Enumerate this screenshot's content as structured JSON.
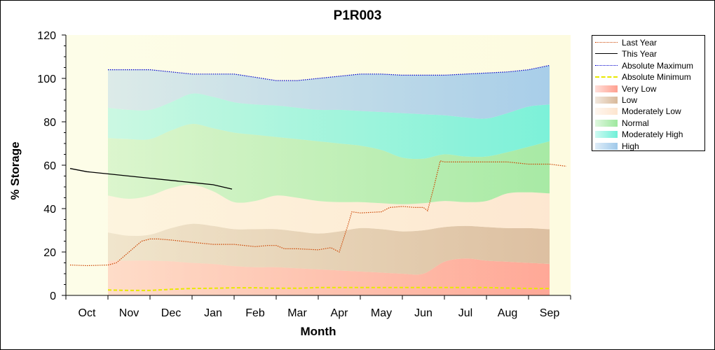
{
  "chart_data": {
    "type": "area",
    "title": "P1R003",
    "xlabel": "Month",
    "ylabel": "% Storage",
    "ylim": [
      0,
      120
    ],
    "yticks": [
      "0",
      "20",
      "40",
      "60",
      "80",
      "100",
      "120"
    ],
    "categories": [
      "Oct",
      "Nov",
      "Dec",
      "Jan",
      "Feb",
      "Mar",
      "Apr",
      "May",
      "Jun",
      "Jul",
      "Aug",
      "Sep"
    ],
    "x_band": [
      1,
      11.5
    ],
    "bands": {
      "x": [
        1,
        1.5,
        2,
        2.5,
        3,
        3.5,
        4,
        4.5,
        5,
        5.5,
        6,
        6.5,
        7,
        7.5,
        8,
        8.5,
        9,
        9.5,
        10,
        10.5,
        11,
        11.5
      ],
      "low": [
        16,
        16,
        16,
        15.7,
        15,
        14.5,
        13.5,
        13,
        13,
        12.5,
        12,
        11.5,
        11,
        10.5,
        10,
        10,
        15.5,
        17,
        16,
        15.5,
        15,
        14.5
      ],
      "mod_low": [
        29,
        27.5,
        28,
        31,
        33,
        32,
        30.5,
        30.5,
        30.5,
        29.5,
        28.5,
        29.5,
        31,
        30.5,
        29.5,
        30,
        31.5,
        32,
        31.5,
        31,
        31,
        30.5
      ],
      "normal": [
        46,
        44.5,
        46,
        49.5,
        51,
        48,
        43,
        43.5,
        46,
        45,
        43.5,
        43,
        43,
        42.5,
        42,
        42.5,
        43.5,
        43,
        43.5,
        47,
        47.5,
        47
      ],
      "mod_high": [
        72.5,
        72,
        72,
        76,
        79,
        77,
        75,
        74,
        73,
        72,
        71,
        70,
        69,
        67,
        63.5,
        63,
        65,
        64,
        64,
        66,
        68.5,
        71
      ],
      "high": [
        86.5,
        85.5,
        85.5,
        89,
        93,
        91.5,
        89,
        88,
        87.5,
        86.5,
        85.5,
        85.5,
        85,
        84.5,
        84,
        83.5,
        83,
        82,
        81.5,
        84,
        87,
        88
      ],
      "top": [
        104,
        104,
        104,
        103,
        102,
        102,
        102,
        100.5,
        99,
        99,
        100,
        101,
        102,
        102,
        101.5,
        101.5,
        101.5,
        102,
        102.5,
        103,
        104,
        106
      ]
    },
    "series": [
      {
        "name": "Last Year",
        "color": "#cc4400",
        "style": "dotted",
        "x": [
          0.1,
          0.5,
          1,
          1.2,
          1.5,
          1.8,
          2,
          2.2,
          2.5,
          3,
          3.5,
          4,
          4.5,
          4.8,
          5,
          5.2,
          5.5,
          6,
          6.3,
          6.5,
          6.7,
          6.8,
          7,
          7.5,
          7.7,
          8,
          8.3,
          8.5,
          8.6,
          8.75,
          8.9,
          9,
          9.5,
          10,
          10.5,
          11,
          11.5,
          11.9
        ],
        "y": [
          14,
          13.7,
          14,
          15,
          20,
          25,
          26,
          26,
          25.5,
          24.5,
          23.5,
          23.5,
          22.5,
          23,
          23,
          21.5,
          21.5,
          21,
          22,
          20,
          32,
          38.5,
          38,
          38.5,
          40.5,
          41,
          40.5,
          40.5,
          39,
          50,
          62,
          61.5,
          61.5,
          61.5,
          61.5,
          60.5,
          60.5,
          59.5
        ]
      },
      {
        "name": "This Year",
        "color": "#000000",
        "style": "solid",
        "x": [
          0.1,
          0.5,
          1,
          1.5,
          2,
          2.5,
          3,
          3.5,
          3.95
        ],
        "y": [
          58.5,
          57,
          56,
          55,
          54,
          53,
          52,
          51,
          49
        ]
      },
      {
        "name": "Absolute Maximum",
        "color": "#0000cc",
        "style": "dotted",
        "x": [
          1,
          1.5,
          2,
          2.5,
          3,
          3.5,
          4,
          4.5,
          5,
          5.5,
          6,
          6.5,
          7,
          7.5,
          8,
          8.5,
          9,
          9.5,
          10,
          10.5,
          11,
          11.5
        ],
        "y": [
          104,
          104,
          104,
          103,
          102,
          102,
          102,
          100.5,
          99,
          99,
          100,
          101,
          102,
          102,
          101.5,
          101.5,
          101.5,
          102,
          102.5,
          103,
          104,
          106
        ]
      },
      {
        "name": "Absolute Minimum",
        "color": "#e8e800",
        "style": "dashed",
        "x": [
          1,
          1.5,
          2,
          2.5,
          3,
          3.5,
          4,
          4.5,
          5,
          5.5,
          6,
          6.5,
          7,
          7.5,
          8,
          8.5,
          9,
          9.5,
          10,
          10.5,
          11,
          11.5
        ],
        "y": [
          2.5,
          2.3,
          2.3,
          2.8,
          3.2,
          3.3,
          3.5,
          3.5,
          3.3,
          3.3,
          3.6,
          3.6,
          3.6,
          3.6,
          3.6,
          3.6,
          3.6,
          3.6,
          3.6,
          3.4,
          3.2,
          3.2
        ]
      }
    ],
    "legend": {
      "position": "right",
      "items": [
        {
          "label": "Last Year",
          "kind": "line",
          "color": "#cc4400",
          "style": "dotted"
        },
        {
          "label": "This Year",
          "kind": "line",
          "color": "#000000",
          "style": "solid"
        },
        {
          "label": "Absolute Maximum",
          "kind": "line",
          "color": "#0000cc",
          "style": "dotted"
        },
        {
          "label": "Absolute Minimum",
          "kind": "line",
          "color": "#e8e800",
          "style": "dashed"
        },
        {
          "label": "Very Low",
          "kind": "area",
          "color": "#ff9f8f"
        },
        {
          "label": "Low",
          "kind": "area",
          "color": "#d9b99a"
        },
        {
          "label": "Moderately Low",
          "kind": "area",
          "color": "#fde5cf"
        },
        {
          "label": "Normal",
          "kind": "area",
          "color": "#9ee89e"
        },
        {
          "label": "Moderately High",
          "kind": "area",
          "color": "#6ef0d8"
        },
        {
          "label": "High",
          "kind": "area",
          "color": "#9fc9ea"
        }
      ]
    },
    "band_colors": {
      "very_low": "#ff9f8f",
      "low": "#d9b99a",
      "mod_low": "#fde5cf",
      "normal": "#9ee89e",
      "mod_high": "#6ef0d8",
      "high": "#9fc9ea"
    },
    "plot_background": "#fdfbe0",
    "grid": false
  }
}
